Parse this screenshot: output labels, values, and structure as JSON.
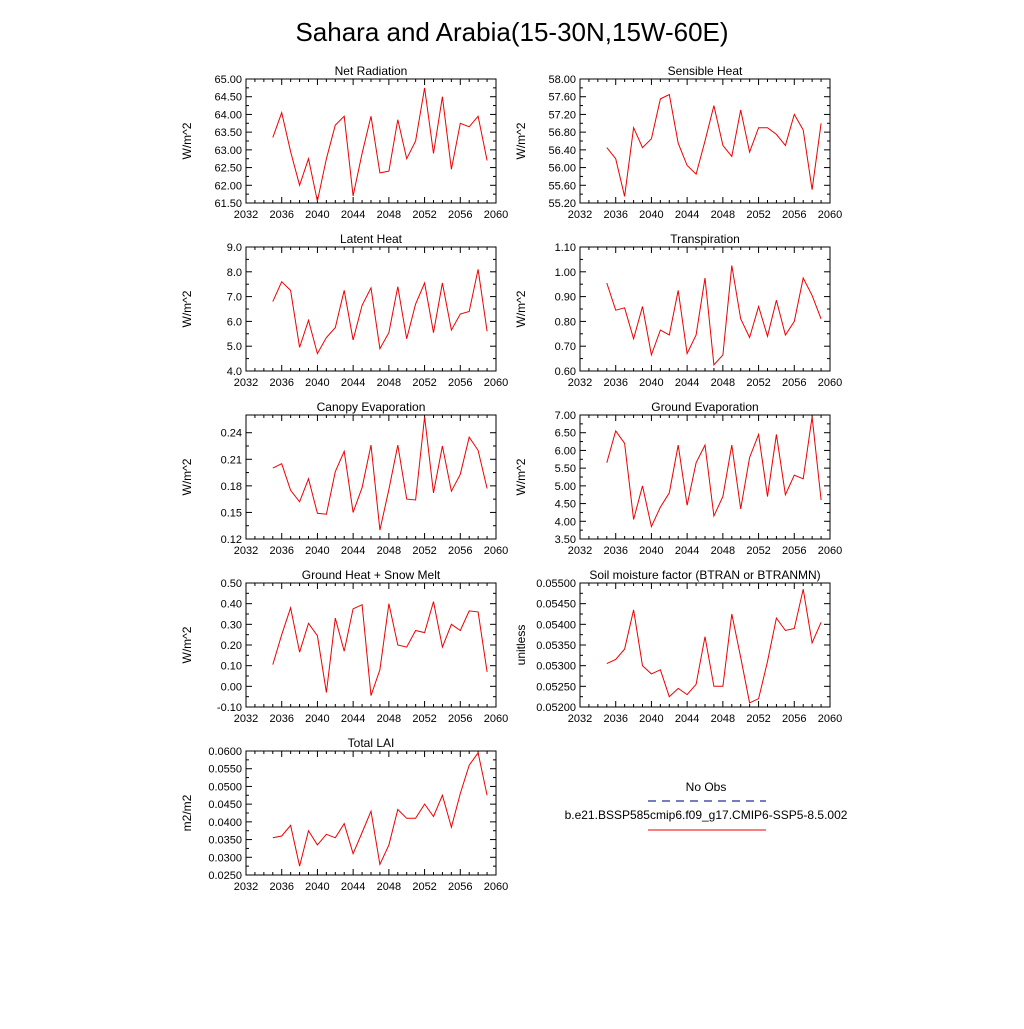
{
  "title": "Sahara and Arabia(15-30N,15W-60E)",
  "legend": {
    "obs_label": "No Obs",
    "obs_color": "#2a2a9a",
    "model_label": "b.e21.BSSP585cmip6.f09_g17.CMIP6-SSP5-8.5.002",
    "model_color": "#ee0000"
  },
  "chart_data": [
    {
      "type": "line",
      "title": "Net Radiation",
      "ylabel": "W/m^2",
      "xlim": [
        2032,
        2060
      ],
      "ylim": [
        61.5,
        65.0
      ],
      "xticks": [
        "2032",
        "2036",
        "2040",
        "2044",
        "2048",
        "2052",
        "2056",
        "2060"
      ],
      "yticks": [
        "61.50",
        "62.00",
        "62.50",
        "63.00",
        "63.50",
        "64.00",
        "64.50",
        "65.00"
      ],
      "x": [
        2035,
        2036,
        2037,
        2038,
        2039,
        2040,
        2041,
        2042,
        2043,
        2044,
        2045,
        2046,
        2047,
        2048,
        2049,
        2050,
        2051,
        2052,
        2053,
        2054,
        2055,
        2056,
        2057,
        2058,
        2059
      ],
      "values": [
        63.35,
        64.05,
        62.95,
        62.0,
        62.75,
        61.55,
        62.75,
        63.7,
        63.95,
        61.7,
        62.9,
        63.95,
        62.35,
        62.4,
        63.85,
        62.75,
        63.25,
        64.75,
        62.9,
        64.5,
        62.45,
        63.75,
        63.65,
        63.95,
        62.7
      ]
    },
    {
      "type": "line",
      "title": "Sensible Heat",
      "ylabel": "W/m^2",
      "xlim": [
        2032,
        2060
      ],
      "ylim": [
        55.2,
        58.0
      ],
      "xticks": [
        "2032",
        "2036",
        "2040",
        "2044",
        "2048",
        "2052",
        "2056",
        "2060"
      ],
      "yticks": [
        "55.20",
        "55.60",
        "56.00",
        "56.40",
        "56.80",
        "57.20",
        "57.60",
        "58.00"
      ],
      "x": [
        2035,
        2036,
        2037,
        2038,
        2039,
        2040,
        2041,
        2042,
        2043,
        2044,
        2045,
        2046,
        2047,
        2048,
        2049,
        2050,
        2051,
        2052,
        2053,
        2054,
        2055,
        2056,
        2057,
        2058,
        2059
      ],
      "values": [
        56.45,
        56.2,
        55.35,
        56.9,
        56.45,
        56.65,
        57.55,
        57.65,
        56.55,
        56.05,
        55.85,
        56.6,
        57.4,
        56.5,
        56.25,
        57.3,
        56.35,
        56.9,
        56.9,
        56.75,
        56.5,
        57.2,
        56.85,
        55.5,
        57.0
      ]
    },
    {
      "type": "line",
      "title": "Latent Heat",
      "ylabel": "W/m^2",
      "xlim": [
        2032,
        2060
      ],
      "ylim": [
        4.0,
        9.0
      ],
      "xticks": [
        "2032",
        "2036",
        "2040",
        "2044",
        "2048",
        "2052",
        "2056",
        "2060"
      ],
      "yticks": [
        "4.0",
        "5.0",
        "6.0",
        "7.0",
        "8.0",
        "9.0"
      ],
      "x": [
        2035,
        2036,
        2037,
        2038,
        2039,
        2040,
        2041,
        2042,
        2043,
        2044,
        2045,
        2046,
        2047,
        2048,
        2049,
        2050,
        2051,
        2052,
        2053,
        2054,
        2055,
        2056,
        2057,
        2058,
        2059
      ],
      "values": [
        6.8,
        7.6,
        7.25,
        4.95,
        6.05,
        4.7,
        5.35,
        5.75,
        7.25,
        5.25,
        6.65,
        7.35,
        4.9,
        5.55,
        7.4,
        5.3,
        6.7,
        7.55,
        5.55,
        7.55,
        5.65,
        6.3,
        6.4,
        8.1,
        5.6
      ]
    },
    {
      "type": "line",
      "title": "Transpiration",
      "ylabel": "W/m^2",
      "xlim": [
        2032,
        2060
      ],
      "ylim": [
        0.6,
        1.1
      ],
      "xticks": [
        "2032",
        "2036",
        "2040",
        "2044",
        "2048",
        "2052",
        "2056",
        "2060"
      ],
      "yticks": [
        "0.60",
        "0.70",
        "0.80",
        "0.90",
        "1.00",
        "1.10"
      ],
      "x": [
        2035,
        2036,
        2037,
        2038,
        2039,
        2040,
        2041,
        2042,
        2043,
        2044,
        2045,
        2046,
        2047,
        2048,
        2049,
        2050,
        2051,
        2052,
        2053,
        2054,
        2055,
        2056,
        2057,
        2058,
        2059
      ],
      "values": [
        0.955,
        0.845,
        0.855,
        0.73,
        0.86,
        0.665,
        0.765,
        0.745,
        0.925,
        0.67,
        0.745,
        0.975,
        0.625,
        0.665,
        1.025,
        0.81,
        0.735,
        0.86,
        0.74,
        0.885,
        0.745,
        0.8,
        0.975,
        0.905,
        0.81
      ]
    },
    {
      "type": "line",
      "title": "Canopy Evaporation",
      "ylabel": "W/m^2",
      "xlim": [
        2032,
        2060
      ],
      "ylim": [
        0.12,
        0.26
      ],
      "xticks": [
        "2032",
        "2036",
        "2040",
        "2044",
        "2048",
        "2052",
        "2056",
        "2060"
      ],
      "yticks": [
        "0.12",
        "0.15",
        "0.18",
        "0.21",
        "0.24"
      ],
      "x": [
        2035,
        2036,
        2037,
        2038,
        2039,
        2040,
        2041,
        2042,
        2043,
        2044,
        2045,
        2046,
        2047,
        2048,
        2049,
        2050,
        2051,
        2052,
        2053,
        2054,
        2055,
        2056,
        2057,
        2058,
        2059
      ],
      "values": [
        0.2,
        0.205,
        0.175,
        0.162,
        0.188,
        0.149,
        0.148,
        0.196,
        0.219,
        0.15,
        0.178,
        0.226,
        0.13,
        0.176,
        0.226,
        0.165,
        0.164,
        0.258,
        0.172,
        0.225,
        0.174,
        0.193,
        0.235,
        0.22,
        0.177
      ]
    },
    {
      "type": "line",
      "title": "Ground Evaporation",
      "ylabel": "W/m^2",
      "xlim": [
        2032,
        2060
      ],
      "ylim": [
        3.5,
        7.0
      ],
      "xticks": [
        "2032",
        "2036",
        "2040",
        "2044",
        "2048",
        "2052",
        "2056",
        "2060"
      ],
      "yticks": [
        "3.50",
        "4.00",
        "4.50",
        "5.00",
        "5.50",
        "6.00",
        "6.50",
        "7.00"
      ],
      "x": [
        2035,
        2036,
        2037,
        2038,
        2039,
        2040,
        2041,
        2042,
        2043,
        2044,
        2045,
        2046,
        2047,
        2048,
        2049,
        2050,
        2051,
        2052,
        2053,
        2054,
        2055,
        2056,
        2057,
        2058,
        2059
      ],
      "values": [
        5.65,
        6.55,
        6.2,
        4.05,
        5.0,
        3.85,
        4.4,
        4.8,
        6.15,
        4.45,
        5.65,
        6.15,
        4.15,
        4.7,
        6.15,
        4.35,
        5.8,
        6.45,
        4.7,
        6.45,
        4.75,
        5.3,
        5.2,
        6.95,
        4.6
      ]
    },
    {
      "type": "line",
      "title": "Ground Heat + Snow Melt",
      "ylabel": "W/m^2",
      "xlim": [
        2032,
        2060
      ],
      "ylim": [
        -0.1,
        0.5
      ],
      "xticks": [
        "2032",
        "2036",
        "2040",
        "2044",
        "2048",
        "2052",
        "2056",
        "2060"
      ],
      "yticks": [
        "-0.10",
        "0.00",
        "0.10",
        "0.20",
        "0.30",
        "0.40",
        "0.50"
      ],
      "x": [
        2035,
        2036,
        2037,
        2038,
        2039,
        2040,
        2041,
        2042,
        2043,
        2044,
        2045,
        2046,
        2047,
        2048,
        2049,
        2050,
        2051,
        2052,
        2053,
        2054,
        2055,
        2056,
        2057,
        2058,
        2059
      ],
      "values": [
        0.105,
        0.25,
        0.38,
        0.165,
        0.305,
        0.245,
        -0.03,
        0.33,
        0.17,
        0.375,
        0.395,
        -0.045,
        0.08,
        0.4,
        0.2,
        0.19,
        0.27,
        0.26,
        0.41,
        0.19,
        0.3,
        0.27,
        0.365,
        0.36,
        0.07
      ]
    },
    {
      "type": "line",
      "title": "Soil moisture factor (BTRAN or BTRANMN)",
      "ylabel": "unitless",
      "xlim": [
        2032,
        2060
      ],
      "ylim": [
        0.052,
        0.055
      ],
      "xticks": [
        "2032",
        "2036",
        "2040",
        "2044",
        "2048",
        "2052",
        "2056",
        "2060"
      ],
      "yticks": [
        "0.05200",
        "0.05250",
        "0.05300",
        "0.05350",
        "0.05400",
        "0.05450",
        "0.05500"
      ],
      "x": [
        2035,
        2036,
        2037,
        2038,
        2039,
        2040,
        2041,
        2042,
        2043,
        2044,
        2045,
        2046,
        2047,
        2048,
        2049,
        2050,
        2051,
        2052,
        2053,
        2054,
        2055,
        2056,
        2057,
        2058,
        2059
      ],
      "values": [
        0.05305,
        0.05315,
        0.0534,
        0.05435,
        0.053,
        0.0528,
        0.0529,
        0.05225,
        0.05245,
        0.0523,
        0.05255,
        0.0537,
        0.0525,
        0.0525,
        0.05425,
        0.0532,
        0.0521,
        0.0522,
        0.0531,
        0.05415,
        0.05385,
        0.0539,
        0.05485,
        0.05355,
        0.05405
      ]
    },
    {
      "type": "line",
      "title": "Total LAI",
      "ylabel": "m2/m2",
      "xlim": [
        2032,
        2060
      ],
      "ylim": [
        0.025,
        0.06
      ],
      "xticks": [
        "2032",
        "2036",
        "2040",
        "2044",
        "2048",
        "2052",
        "2056",
        "2060"
      ],
      "yticks": [
        "0.0250",
        "0.0300",
        "0.0350",
        "0.0400",
        "0.0450",
        "0.0500",
        "0.0550",
        "0.0600"
      ],
      "x": [
        2035,
        2036,
        2037,
        2038,
        2039,
        2040,
        2041,
        2042,
        2043,
        2044,
        2045,
        2046,
        2047,
        2048,
        2049,
        2050,
        2051,
        2052,
        2053,
        2054,
        2055,
        2056,
        2057,
        2058,
        2059
      ],
      "values": [
        0.0355,
        0.036,
        0.039,
        0.0275,
        0.0375,
        0.0335,
        0.0365,
        0.0355,
        0.0395,
        0.031,
        0.037,
        0.043,
        0.028,
        0.0335,
        0.0435,
        0.041,
        0.041,
        0.045,
        0.0415,
        0.0475,
        0.0385,
        0.048,
        0.056,
        0.0595,
        0.0475
      ]
    }
  ]
}
